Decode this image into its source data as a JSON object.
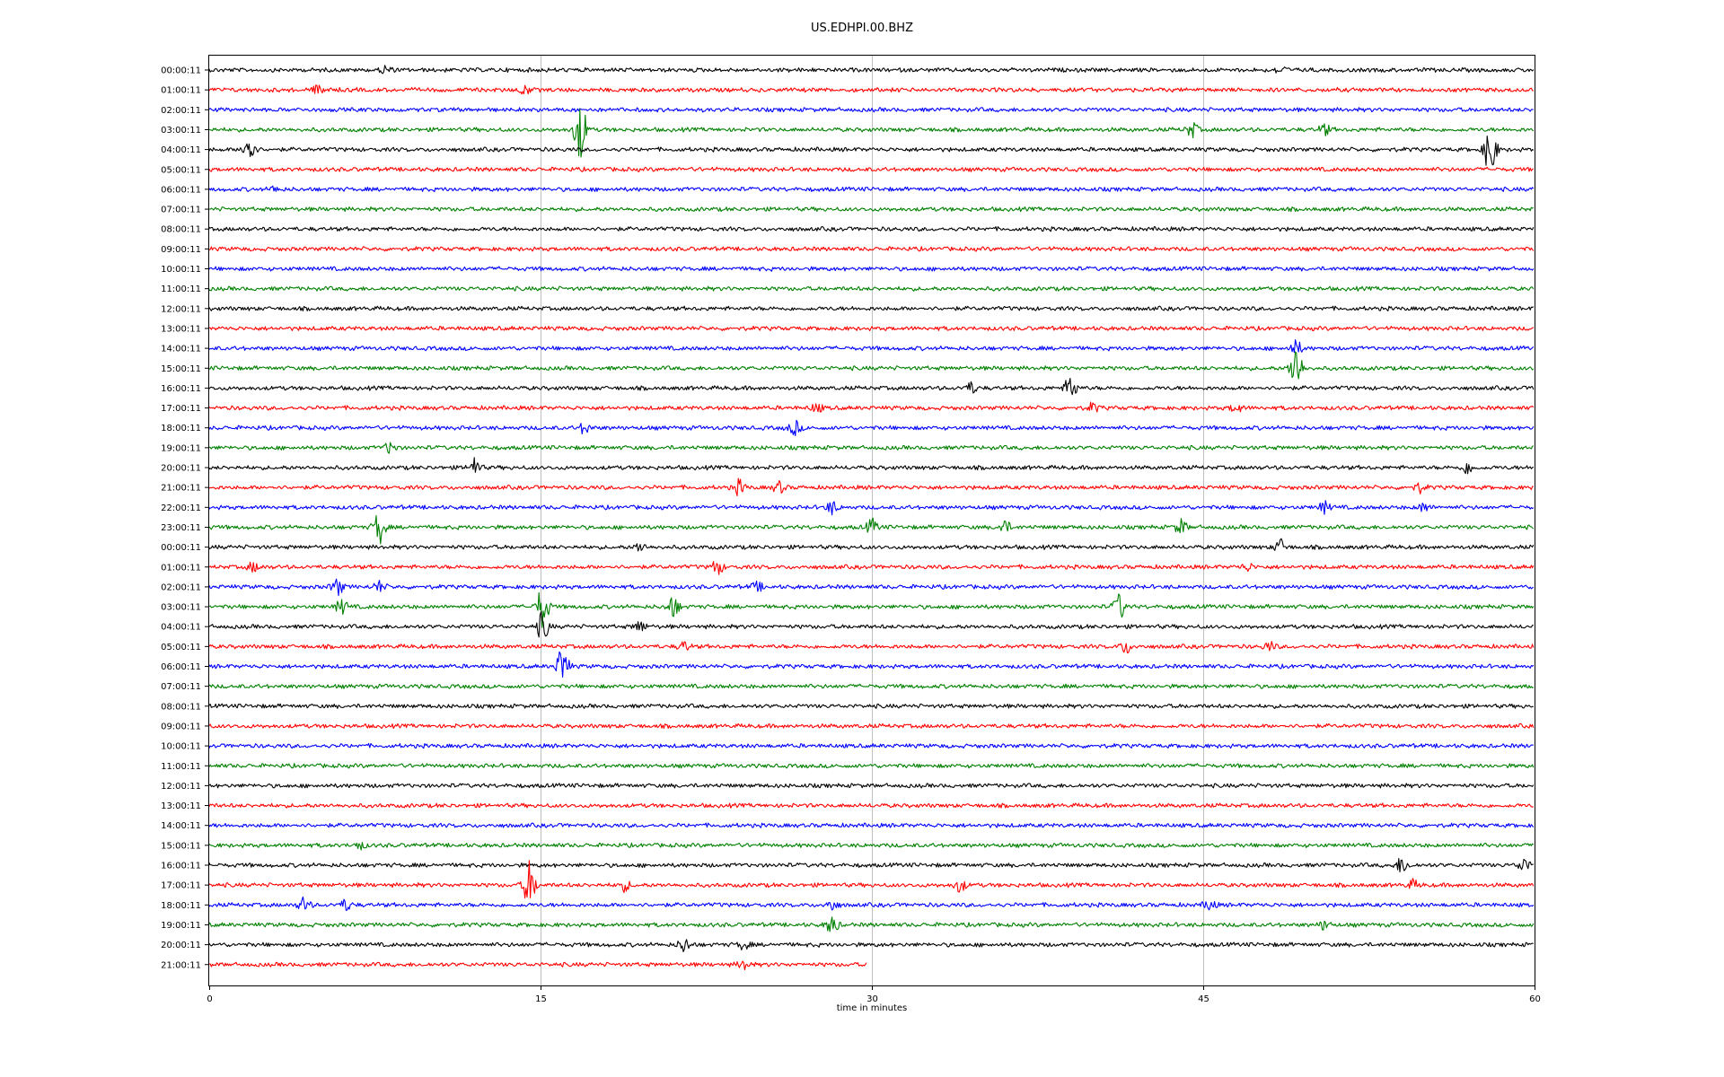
{
  "chart_data": {
    "type": "line",
    "title": "US.EDHPI.00.BHZ",
    "xlabel": "time in minutes",
    "ylabel": "",
    "xlim": [
      0,
      60
    ],
    "x_ticks": [
      "0",
      "15",
      "30",
      "45",
      "60"
    ],
    "grid": "vertical",
    "trace_colors": [
      "#000000",
      "#ff0000",
      "#0000ff",
      "#008000"
    ],
    "rows": [
      {
        "label": "00:00:11",
        "end_minute": 60,
        "events": [
          {
            "t": 8.0,
            "a": 5
          },
          {
            "t": 48.5,
            "a": 4
          }
        ]
      },
      {
        "label": "01:00:11",
        "end_minute": 60,
        "events": [
          {
            "t": 5.0,
            "a": 6
          },
          {
            "t": 14.3,
            "a": 5
          }
        ]
      },
      {
        "label": "02:00:11",
        "end_minute": 60,
        "events": []
      },
      {
        "label": "03:00:11",
        "end_minute": 60,
        "events": [
          {
            "t": 16.8,
            "a": 34
          },
          {
            "t": 44.5,
            "a": 8
          },
          {
            "t": 50.5,
            "a": 6
          }
        ]
      },
      {
        "label": "04:00:11",
        "end_minute": 60,
        "events": [
          {
            "t": 1.8,
            "a": 18
          },
          {
            "t": 58.0,
            "a": 30
          }
        ]
      },
      {
        "label": "05:00:11",
        "end_minute": 60,
        "events": []
      },
      {
        "label": "06:00:11",
        "end_minute": 60,
        "events": [
          {
            "t": 3.0,
            "a": 3
          }
        ]
      },
      {
        "label": "07:00:11",
        "end_minute": 60,
        "events": []
      },
      {
        "label": "08:00:11",
        "end_minute": 60,
        "events": []
      },
      {
        "label": "09:00:11",
        "end_minute": 60,
        "events": []
      },
      {
        "label": "10:00:11",
        "end_minute": 60,
        "events": []
      },
      {
        "label": "11:00:11",
        "end_minute": 60,
        "events": []
      },
      {
        "label": "12:00:11",
        "end_minute": 60,
        "events": []
      },
      {
        "label": "13:00:11",
        "end_minute": 60,
        "events": []
      },
      {
        "label": "14:00:11",
        "end_minute": 60,
        "events": [
          {
            "t": 49.2,
            "a": 8
          }
        ]
      },
      {
        "label": "15:00:11",
        "end_minute": 60,
        "events": [
          {
            "t": 49.2,
            "a": 28
          }
        ]
      },
      {
        "label": "16:00:11",
        "end_minute": 60,
        "events": [
          {
            "t": 34.5,
            "a": 6
          },
          {
            "t": 39.0,
            "a": 14
          }
        ]
      },
      {
        "label": "17:00:11",
        "end_minute": 60,
        "events": [
          {
            "t": 27.5,
            "a": 5
          },
          {
            "t": 40.0,
            "a": 5
          },
          {
            "t": 46.5,
            "a": 5
          }
        ]
      },
      {
        "label": "18:00:11",
        "end_minute": 60,
        "events": [
          {
            "t": 17.0,
            "a": 6
          },
          {
            "t": 26.5,
            "a": 8
          }
        ]
      },
      {
        "label": "19:00:11",
        "end_minute": 60,
        "events": [
          {
            "t": 8.2,
            "a": 6
          }
        ]
      },
      {
        "label": "20:00:11",
        "end_minute": 60,
        "events": [
          {
            "t": 12.0,
            "a": 10
          },
          {
            "t": 57.0,
            "a": 7
          }
        ]
      },
      {
        "label": "21:00:11",
        "end_minute": 60,
        "events": [
          {
            "t": 24.0,
            "a": 8
          },
          {
            "t": 25.8,
            "a": 6
          },
          {
            "t": 54.8,
            "a": 5
          }
        ]
      },
      {
        "label": "22:00:11",
        "end_minute": 60,
        "events": [
          {
            "t": 28.2,
            "a": 7
          },
          {
            "t": 50.5,
            "a": 6
          },
          {
            "t": 55.0,
            "a": 5
          }
        ]
      },
      {
        "label": "23:00:11",
        "end_minute": 60,
        "events": [
          {
            "t": 7.7,
            "a": 18
          },
          {
            "t": 30.0,
            "a": 8
          },
          {
            "t": 36.0,
            "a": 7
          },
          {
            "t": 44.0,
            "a": 8
          }
        ]
      },
      {
        "label": "00:00:11",
        "end_minute": 60,
        "events": [
          {
            "t": 19.5,
            "a": 5
          },
          {
            "t": 48.5,
            "a": 8
          }
        ]
      },
      {
        "label": "01:00:11",
        "end_minute": 60,
        "events": [
          {
            "t": 2.0,
            "a": 5
          },
          {
            "t": 23.0,
            "a": 8
          },
          {
            "t": 47.0,
            "a": 4
          }
        ]
      },
      {
        "label": "02:00:11",
        "end_minute": 60,
        "events": [
          {
            "t": 5.8,
            "a": 9
          },
          {
            "t": 7.7,
            "a": 6
          },
          {
            "t": 24.8,
            "a": 5
          }
        ]
      },
      {
        "label": "03:00:11",
        "end_minute": 60,
        "events": [
          {
            "t": 6.0,
            "a": 8
          },
          {
            "t": 15.1,
            "a": 24
          },
          {
            "t": 21.0,
            "a": 12
          },
          {
            "t": 41.2,
            "a": 14
          }
        ]
      },
      {
        "label": "04:00:11",
        "end_minute": 60,
        "events": [
          {
            "t": 15.1,
            "a": 16
          },
          {
            "t": 19.5,
            "a": 6
          }
        ]
      },
      {
        "label": "05:00:11",
        "end_minute": 60,
        "events": [
          {
            "t": 21.5,
            "a": 5
          },
          {
            "t": 41.5,
            "a": 7
          },
          {
            "t": 48.0,
            "a": 5
          }
        ]
      },
      {
        "label": "06:00:11",
        "end_minute": 60,
        "events": [
          {
            "t": 16.0,
            "a": 22
          }
        ]
      },
      {
        "label": "07:00:11",
        "end_minute": 60,
        "events": []
      },
      {
        "label": "08:00:11",
        "end_minute": 60,
        "events": []
      },
      {
        "label": "09:00:11",
        "end_minute": 60,
        "events": []
      },
      {
        "label": "10:00:11",
        "end_minute": 60,
        "events": []
      },
      {
        "label": "11:00:11",
        "end_minute": 60,
        "events": []
      },
      {
        "label": "12:00:11",
        "end_minute": 60,
        "events": []
      },
      {
        "label": "13:00:11",
        "end_minute": 60,
        "events": []
      },
      {
        "label": "14:00:11",
        "end_minute": 60,
        "events": []
      },
      {
        "label": "15:00:11",
        "end_minute": 60,
        "events": [
          {
            "t": 6.8,
            "a": 4
          }
        ]
      },
      {
        "label": "16:00:11",
        "end_minute": 60,
        "events": [
          {
            "t": 54.0,
            "a": 9
          },
          {
            "t": 59.5,
            "a": 8
          }
        ]
      },
      {
        "label": "17:00:11",
        "end_minute": 60,
        "events": [
          {
            "t": 14.5,
            "a": 26
          },
          {
            "t": 18.8,
            "a": 6
          },
          {
            "t": 34.0,
            "a": 7
          },
          {
            "t": 54.5,
            "a": 5
          }
        ]
      },
      {
        "label": "18:00:11",
        "end_minute": 60,
        "events": [
          {
            "t": 4.3,
            "a": 8
          },
          {
            "t": 6.2,
            "a": 6
          },
          {
            "t": 28.2,
            "a": 6
          },
          {
            "t": 45.3,
            "a": 6
          }
        ]
      },
      {
        "label": "19:00:11",
        "end_minute": 60,
        "events": [
          {
            "t": 28.2,
            "a": 10
          },
          {
            "t": 50.5,
            "a": 5
          }
        ]
      },
      {
        "label": "20:00:11",
        "end_minute": 60,
        "events": [
          {
            "t": 21.5,
            "a": 8
          },
          {
            "t": 24.2,
            "a": 5
          }
        ]
      },
      {
        "label": "21:00:11",
        "end_minute": 29.8,
        "events": [
          {
            "t": 24.2,
            "a": 6
          }
        ]
      }
    ]
  }
}
